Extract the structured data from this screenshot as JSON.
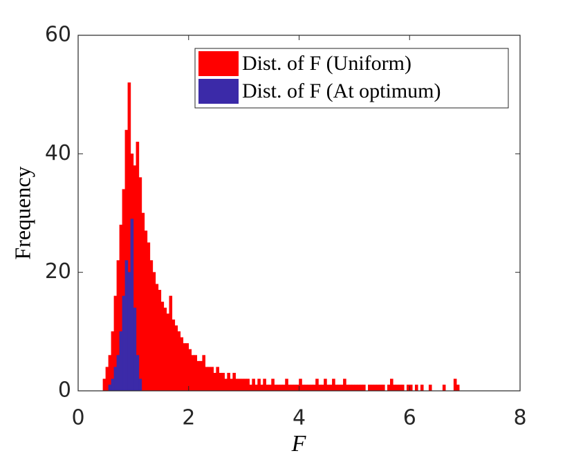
{
  "chart_data": {
    "type": "histogram",
    "xlabel": "F",
    "ylabel": "Frequency",
    "xlim": [
      0,
      8
    ],
    "ylim": [
      0,
      60
    ],
    "xticks": [
      0,
      2,
      4,
      6,
      8
    ],
    "yticks": [
      0,
      20,
      40,
      60
    ],
    "legend": "top-right",
    "series": [
      {
        "name": "Dist. of F (Uniform)",
        "color": "#ff0000",
        "bins": [
          0.4,
          0.45,
          0.5,
          0.55,
          0.6,
          0.65,
          0.7,
          0.75,
          0.8,
          0.85,
          0.9,
          0.95,
          1,
          1.05,
          1.1,
          1.15,
          1.2,
          1.25,
          1.3,
          1.35,
          1.4,
          1.45,
          1.5,
          1.55,
          1.6,
          1.65,
          1.7,
          1.75,
          1.8,
          1.85,
          1.9,
          1.95,
          2,
          2.05,
          2.1,
          2.15,
          2.2,
          2.25,
          2.3,
          2.35,
          2.4,
          2.45,
          2.5,
          2.55,
          2.6,
          2.65,
          2.7,
          2.75,
          2.8,
          2.85,
          2.9,
          2.95,
          3,
          3.05,
          3.1,
          3.15,
          3.2,
          3.25,
          3.3,
          3.35,
          3.4,
          3.45,
          3.5,
          3.55,
          3.6,
          3.65,
          3.7,
          3.75,
          3.8,
          3.85,
          3.9,
          3.95,
          4,
          4.05,
          4.1,
          4.15,
          4.2,
          4.25,
          4.3,
          4.35,
          4.4,
          4.45,
          4.5,
          4.55,
          4.6,
          4.65,
          4.7,
          4.75,
          4.8,
          4.85,
          4.9,
          4.95,
          5,
          5.05,
          5.1,
          5.15,
          5.2,
          5.25,
          5.3,
          5.35,
          5.4,
          5.45,
          5.5,
          5.55,
          5.6,
          5.65,
          5.7,
          5.75,
          5.8,
          5.85,
          5.9,
          5.95,
          6,
          6.05,
          6.1,
          6.15,
          6.2,
          6.25,
          6.3,
          6.35,
          6.4,
          6.45,
          6.5,
          6.55,
          6.6,
          6.65,
          6.7,
          6.75,
          6.8,
          6.85,
          6.9,
          6.95,
          7
        ],
        "values": [
          0,
          2,
          4,
          6,
          10,
          16,
          22,
          28,
          34,
          44,
          52,
          40,
          38,
          42,
          36,
          30,
          27,
          25,
          22,
          20,
          18,
          17,
          15,
          14,
          13,
          16,
          12,
          11,
          10,
          9,
          8,
          8,
          7,
          6,
          6,
          5,
          5,
          6,
          4,
          4,
          4,
          3,
          4,
          3,
          3,
          2,
          3,
          2,
          3,
          2,
          2,
          2,
          2,
          2,
          1,
          2,
          1,
          2,
          1,
          2,
          1,
          1,
          2,
          1,
          1,
          1,
          1,
          2,
          1,
          1,
          1,
          1,
          2,
          1,
          1,
          1,
          1,
          1,
          2,
          1,
          1,
          2,
          1,
          1,
          2,
          1,
          1,
          1,
          2,
          1,
          1,
          1,
          1,
          1,
          1,
          1,
          0,
          1,
          1,
          1,
          1,
          1,
          1,
          0,
          1,
          2,
          1,
          1,
          1,
          1,
          0,
          1,
          1,
          0,
          1,
          0,
          1,
          0,
          0,
          1,
          0,
          0,
          0,
          0,
          1,
          0,
          0,
          0,
          2,
          1,
          0,
          0
        ]
      },
      {
        "name": "Dist. of F (At optimum)",
        "color": "#3b2aa8",
        "bins": [
          0.55,
          0.6,
          0.65,
          0.7,
          0.75,
          0.8,
          0.85,
          0.9,
          0.95,
          1,
          1.05,
          1.1,
          1.15
        ],
        "values": [
          1,
          2,
          4,
          6,
          10,
          16,
          22,
          20,
          29,
          14,
          6,
          2
        ]
      }
    ]
  }
}
